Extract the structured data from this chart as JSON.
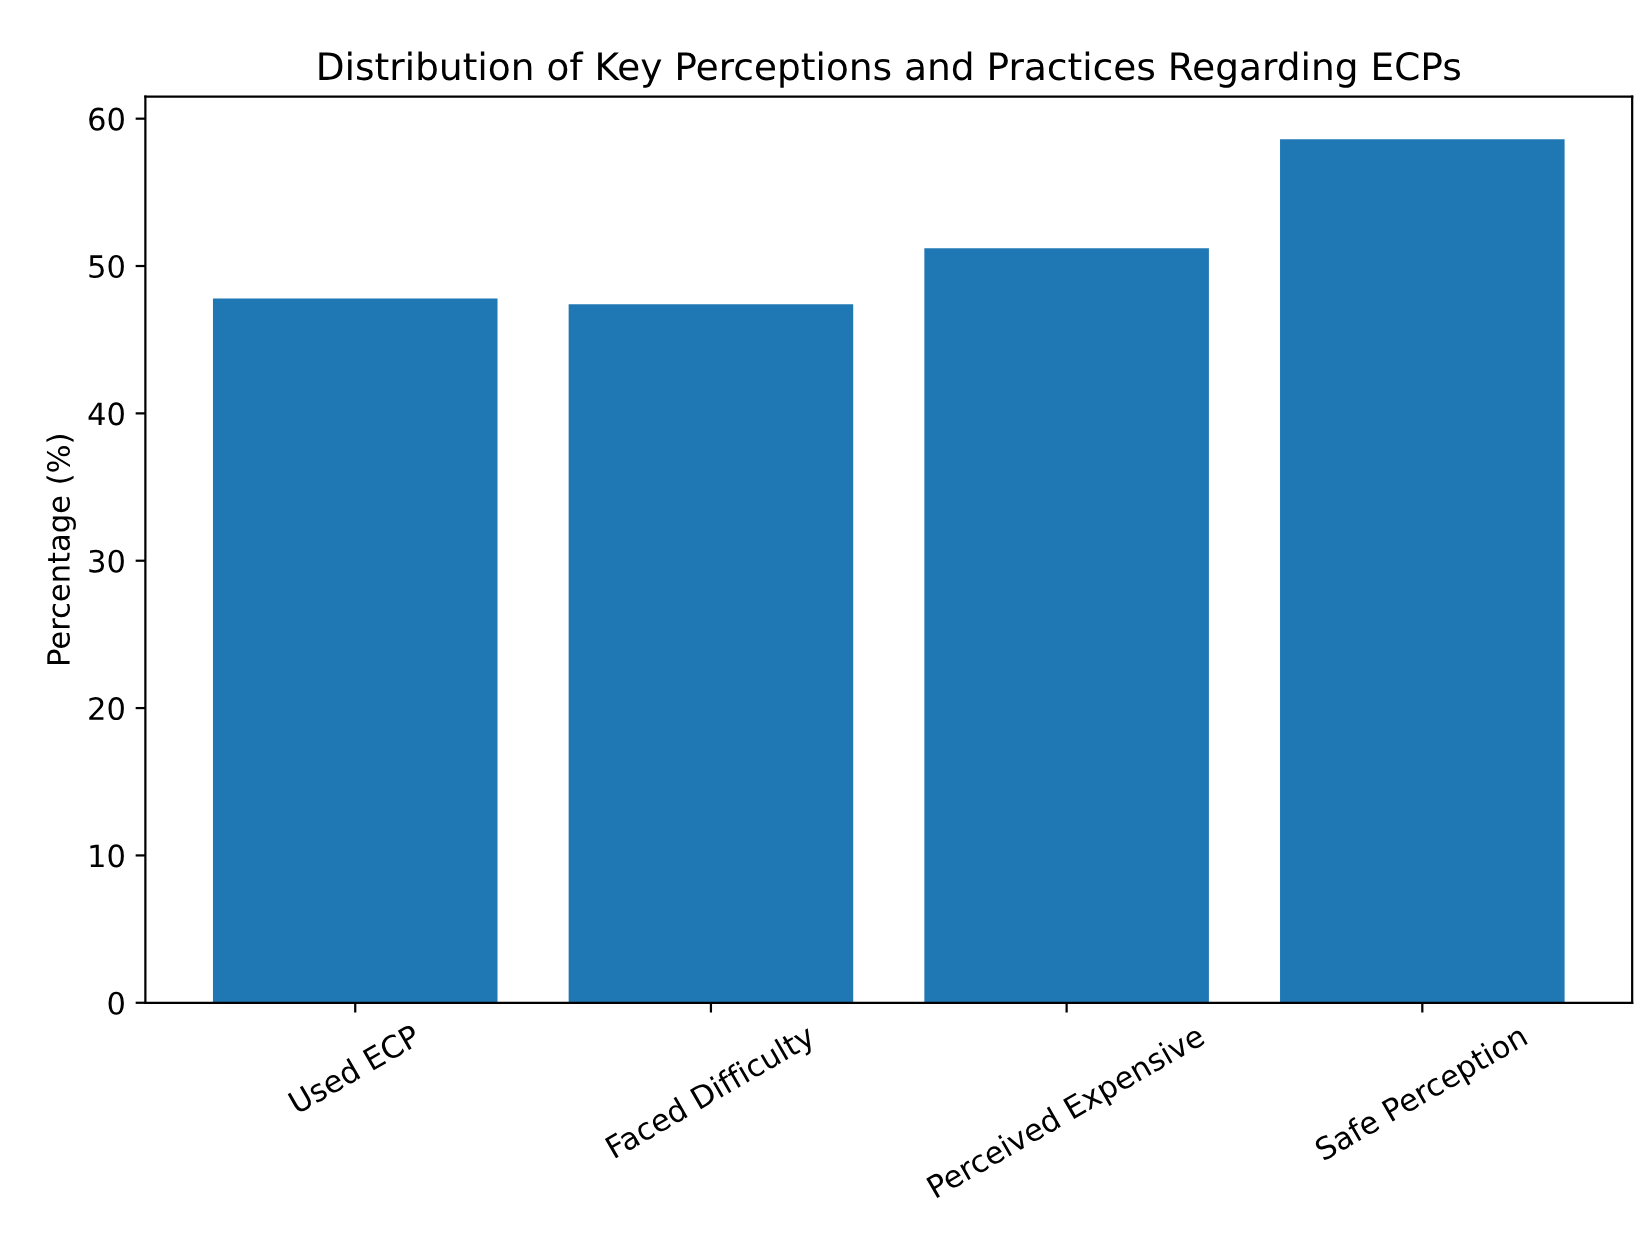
{
  "chart_data": {
    "type": "bar",
    "title": "Distribution of Key Perceptions and Practices Regarding ECPs",
    "ylabel": "Percentage (%)",
    "categories": [
      "Used ECP",
      "Faced Difficulty",
      "Perceived Expensive",
      "Safe Perception"
    ],
    "values": [
      47.8,
      47.4,
      51.2,
      58.6
    ],
    "color": "#1f77b4",
    "ylim": [
      0,
      61.5
    ],
    "yticks": [
      0,
      10,
      20,
      30,
      40,
      50,
      60
    ],
    "grid": false
  }
}
